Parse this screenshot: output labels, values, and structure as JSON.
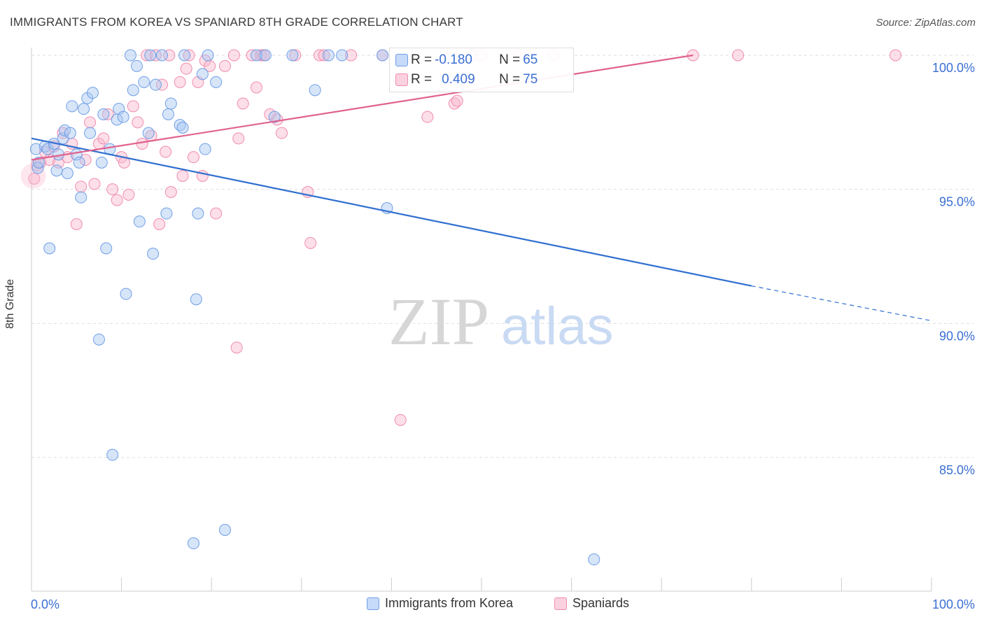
{
  "title": "IMMIGRANTS FROM KOREA VS SPANIARD 8TH GRADE CORRELATION CHART",
  "source": "Source: ZipAtlas.com",
  "watermark": {
    "zip": "ZIP",
    "atlas": "atlas"
  },
  "colors": {
    "blue": "#6f9fe6",
    "blue_line": "#2f6fd0",
    "pink": "#f08cb0",
    "pink_line": "#e0628e",
    "axis_text": "#3b6fd3"
  },
  "stats": [
    {
      "label_r": "R = ",
      "r": "-0.180",
      "label_n": "N = ",
      "n": "65"
    },
    {
      "label_r": "R = ",
      "r": "0.409",
      "label_n": "N = ",
      "n": "75"
    }
  ],
  "chart_data": {
    "type": "scatter",
    "xlabel": "",
    "ylabel": "8th Grade",
    "xlim": [
      0,
      100
    ],
    "ylim": [
      80.5,
      100.5
    ],
    "x_tick_labels": [
      "0.0%",
      "100.0%"
    ],
    "y_ticks": [
      85,
      90,
      95,
      100
    ],
    "y_tick_labels": [
      "85.0%",
      "90.0%",
      "95.0%",
      "100.0%"
    ],
    "legend": [
      "Immigrants from Korea",
      "Spaniards"
    ],
    "series": [
      {
        "name": "Immigrants from Korea",
        "trend": {
          "x0": 0,
          "y0": 96.9,
          "x1": 80,
          "y1": 91.4,
          "dash_to_x": 100,
          "dash_to_y": 90.1
        },
        "points": [
          [
            0.5,
            96.5
          ],
          [
            0.7,
            95.8
          ],
          [
            0.8,
            96.0
          ],
          [
            1.5,
            96.6
          ],
          [
            1.8,
            96.5
          ],
          [
            2.0,
            92.8
          ],
          [
            2.5,
            96.7
          ],
          [
            2.8,
            95.7
          ],
          [
            3.0,
            96.3
          ],
          [
            3.5,
            96.9
          ],
          [
            3.7,
            97.2
          ],
          [
            4.0,
            95.6
          ],
          [
            4.3,
            97.1
          ],
          [
            4.5,
            98.1
          ],
          [
            5.0,
            96.3
          ],
          [
            5.3,
            96.0
          ],
          [
            5.5,
            94.7
          ],
          [
            5.8,
            98.0
          ],
          [
            6.2,
            98.4
          ],
          [
            6.5,
            97.1
          ],
          [
            6.8,
            98.6
          ],
          [
            7.5,
            89.4
          ],
          [
            7.8,
            96.0
          ],
          [
            8.0,
            97.8
          ],
          [
            8.3,
            92.8
          ],
          [
            8.7,
            96.5
          ],
          [
            9.0,
            85.1
          ],
          [
            9.5,
            97.6
          ],
          [
            9.7,
            98.0
          ],
          [
            10.2,
            97.7
          ],
          [
            10.5,
            91.1
          ],
          [
            11.0,
            100.0
          ],
          [
            11.3,
            98.7
          ],
          [
            11.7,
            99.6
          ],
          [
            12.0,
            93.8
          ],
          [
            12.5,
            99.0
          ],
          [
            13.0,
            97.1
          ],
          [
            13.2,
            100.0
          ],
          [
            13.5,
            92.6
          ],
          [
            13.8,
            98.9
          ],
          [
            14.5,
            100.0
          ],
          [
            15.0,
            94.1
          ],
          [
            15.2,
            97.8
          ],
          [
            15.5,
            98.2
          ],
          [
            16.5,
            97.4
          ],
          [
            16.8,
            97.3
          ],
          [
            17.0,
            100.0
          ],
          [
            18.0,
            81.8
          ],
          [
            18.3,
            90.9
          ],
          [
            18.5,
            94.1
          ],
          [
            19.0,
            99.3
          ],
          [
            19.3,
            96.5
          ],
          [
            19.6,
            100.0
          ],
          [
            20.5,
            99.0
          ],
          [
            21.5,
            82.3
          ],
          [
            25.0,
            100.0
          ],
          [
            26.0,
            100.0
          ],
          [
            27.0,
            97.7
          ],
          [
            29.0,
            100.0
          ],
          [
            31.5,
            98.7
          ],
          [
            33.0,
            100.0
          ],
          [
            34.5,
            100.0
          ],
          [
            39.0,
            100.0
          ],
          [
            39.5,
            94.3
          ],
          [
            62.5,
            81.2
          ]
        ]
      },
      {
        "name": "Spaniards",
        "trend": {
          "x0": 0,
          "y0": 96.1,
          "x1": 73.5,
          "y1": 100.0
        },
        "points": [
          [
            0.3,
            95.4
          ],
          [
            0.6,
            95.9
          ],
          [
            1.0,
            96.0
          ],
          [
            1.5,
            96.4
          ],
          [
            2.0,
            96.1
          ],
          [
            2.5,
            96.6
          ],
          [
            3.0,
            96.0
          ],
          [
            3.5,
            97.1
          ],
          [
            4.0,
            96.2
          ],
          [
            4.5,
            96.7
          ],
          [
            5.0,
            93.7
          ],
          [
            5.5,
            95.1
          ],
          [
            6.0,
            96.1
          ],
          [
            6.5,
            97.5
          ],
          [
            7.0,
            95.2
          ],
          [
            7.5,
            96.7
          ],
          [
            8.0,
            96.9
          ],
          [
            8.5,
            97.8
          ],
          [
            9.0,
            95.0
          ],
          [
            9.5,
            94.6
          ],
          [
            10.0,
            96.2
          ],
          [
            10.3,
            96.0
          ],
          [
            10.8,
            94.8
          ],
          [
            11.3,
            98.1
          ],
          [
            11.8,
            97.5
          ],
          [
            12.3,
            96.7
          ],
          [
            12.8,
            100.0
          ],
          [
            13.3,
            97.0
          ],
          [
            13.8,
            100.0
          ],
          [
            14.2,
            93.7
          ],
          [
            14.5,
            98.9
          ],
          [
            14.9,
            96.4
          ],
          [
            15.3,
            100.0
          ],
          [
            15.5,
            94.9
          ],
          [
            16.5,
            99.0
          ],
          [
            16.8,
            95.5
          ],
          [
            17.2,
            99.5
          ],
          [
            17.5,
            100.0
          ],
          [
            18.0,
            96.2
          ],
          [
            18.5,
            99.0
          ],
          [
            19.0,
            95.5
          ],
          [
            19.3,
            99.8
          ],
          [
            19.8,
            99.6
          ],
          [
            20.5,
            94.1
          ],
          [
            21.5,
            99.6
          ],
          [
            22.5,
            100.0
          ],
          [
            22.8,
            89.1
          ],
          [
            23.0,
            96.9
          ],
          [
            23.5,
            98.2
          ],
          [
            24.5,
            100.0
          ],
          [
            25.0,
            98.8
          ],
          [
            25.5,
            100.0
          ],
          [
            25.8,
            100.0
          ],
          [
            26.5,
            97.8
          ],
          [
            27.3,
            97.6
          ],
          [
            27.8,
            97.1
          ],
          [
            29.3,
            100.0
          ],
          [
            30.7,
            94.9
          ],
          [
            31.0,
            93.0
          ],
          [
            32.0,
            100.0
          ],
          [
            32.5,
            100.0
          ],
          [
            35.5,
            100.0
          ],
          [
            39.0,
            100.0
          ],
          [
            41.0,
            86.4
          ],
          [
            44.0,
            97.7
          ],
          [
            47.0,
            98.2
          ],
          [
            47.3,
            98.3
          ],
          [
            49.0,
            100.0
          ],
          [
            50.0,
            100.0
          ],
          [
            54.0,
            100.0
          ],
          [
            55.0,
            100.0
          ],
          [
            58.0,
            100.0
          ],
          [
            73.5,
            100.0
          ],
          [
            78.5,
            100.0
          ],
          [
            96.0,
            100.0
          ]
        ]
      }
    ]
  }
}
